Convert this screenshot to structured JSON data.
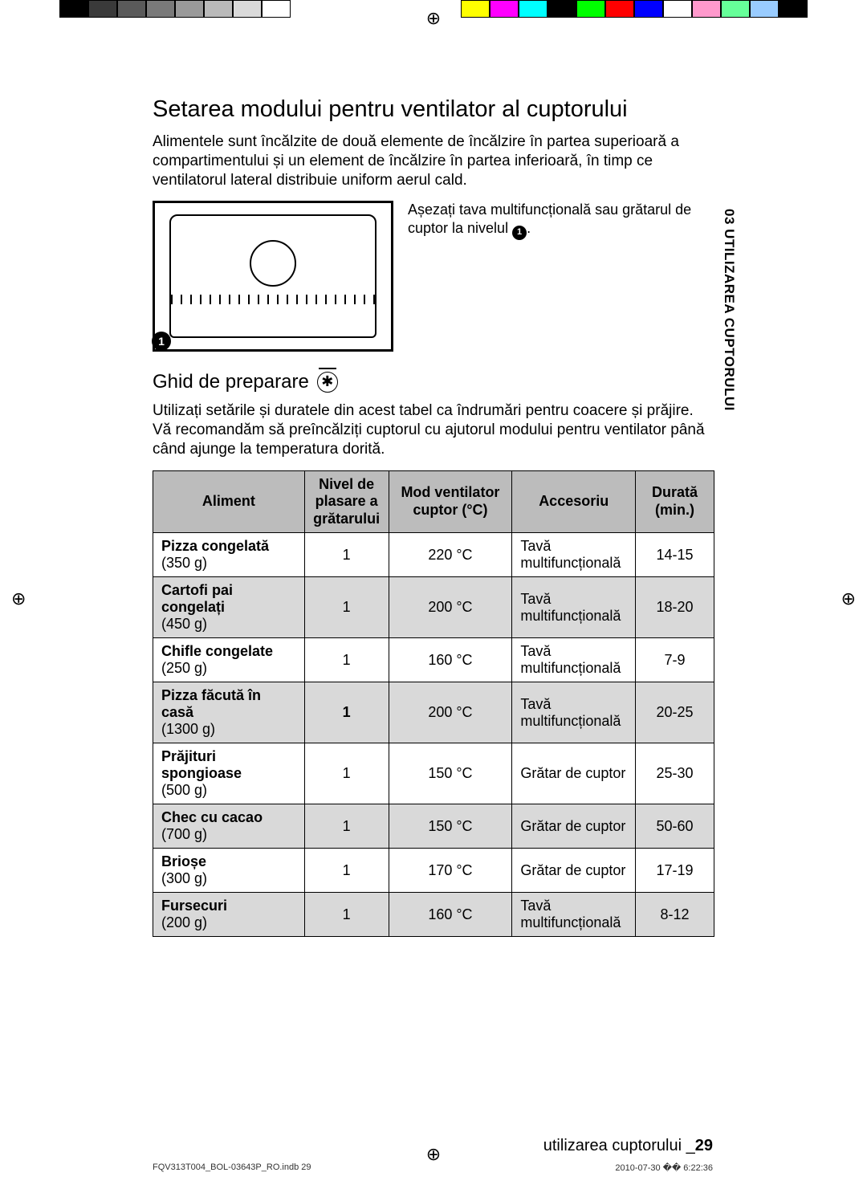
{
  "colorbar": {
    "left_blocks": [
      "#000000",
      "#3a3a3a",
      "#5a5a5a",
      "#7a7a7a",
      "#9a9a9a",
      "#bababa",
      "#dadada",
      "#ffffff"
    ],
    "left_block_border": "#000000",
    "right_blocks": [
      "#ffff00",
      "#ff00ff",
      "#00ffff",
      "#000000",
      "#00ff00",
      "#ff0000",
      "#0000ff",
      "#ffffff",
      "#ff99cc",
      "#66ff99",
      "#99ccff",
      "#000000"
    ],
    "right_block_border": "#000000"
  },
  "side_tab": "03 UTILIZAREA CUPTORULUI",
  "h1": "Setarea modului pentru ventilator al cuptorului",
  "intro": "Alimentele sunt încălzite de două elemente de încălzire în partea superioară a compartimentului și un element de încălzire în partea inferioară, în timp ce ventilatorul lateral distribuie uniform aerul cald.",
  "fig_caption_before": "Așezați tava multifuncțională sau grătarul de cuptor la nivelul ",
  "fig_caption_bullet": "1",
  "fig_caption_after": ".",
  "h2": "Ghid de preparare",
  "guide_text": "Utilizați setările și duratele din acest tabel ca îndrumări pentru coacere și prăjire. Vă recomandăm să preîncălziți cuptorul cu ajutorul modului pentru ventilator până când ajunge la temperatura dorită.",
  "table": {
    "columns": [
      "Aliment",
      "Nivel de plasare a grătarului",
      "Mod ventilator cuptor (°C)",
      "Accesoriu",
      "Durată (min.)"
    ],
    "col_widths_pct": [
      27,
      15,
      22,
      22,
      14
    ],
    "header_bg": "#bcbcbc",
    "alt_bg": "#d9d9d9",
    "rows": [
      {
        "name": "Pizza congelată",
        "weight": "(350 g)",
        "level": "1",
        "temp": "220 °C",
        "acc": "Tavă multifuncțională",
        "time": "14-15",
        "alt": false
      },
      {
        "name": "Cartofi pai congelați",
        "weight": "(450 g)",
        "level": "1",
        "temp": "200 °C",
        "acc": "Tavă multifuncțională",
        "time": "18-20",
        "alt": true
      },
      {
        "name": "Chifle congelate",
        "weight": "(250 g)",
        "level": "1",
        "temp": "160 °C",
        "acc": "Tavă multifuncțională",
        "time": "7-9",
        "alt": false
      },
      {
        "name": "Pizza făcută în casă",
        "weight": "(1300 g)",
        "level": "1",
        "level_bold": true,
        "temp": "200 °C",
        "acc": "Tavă multifuncțională",
        "time": "20-25",
        "alt": true
      },
      {
        "name": "Prăjituri spongioase",
        "weight": "(500 g)",
        "level": "1",
        "temp": "150 °C",
        "acc": "Grătar de cuptor",
        "time": "25-30",
        "alt": false
      },
      {
        "name": "Chec cu cacao",
        "weight": "(700 g)",
        "level": "1",
        "temp": "150 °C",
        "acc": "Grătar de cuptor",
        "time": "50-60",
        "alt": true
      },
      {
        "name": "Brioșe",
        "weight": "(300 g)",
        "level": "1",
        "temp": "170 °C",
        "acc": "Grătar de cuptor",
        "time": "17-19",
        "alt": false
      },
      {
        "name": "Fursecuri",
        "weight": "(200 g)",
        "level": "1",
        "temp": "160 °C",
        "acc": "Tavă multifuncțională",
        "time": "8-12",
        "alt": true
      }
    ]
  },
  "footer_section": "utilizarea cuptorului _",
  "footer_page": "29",
  "printfoot_left": "FQV313T004_BOL-03643P_RO.indb   29",
  "printfoot_right": "2010-07-30   �� 6:22:36"
}
